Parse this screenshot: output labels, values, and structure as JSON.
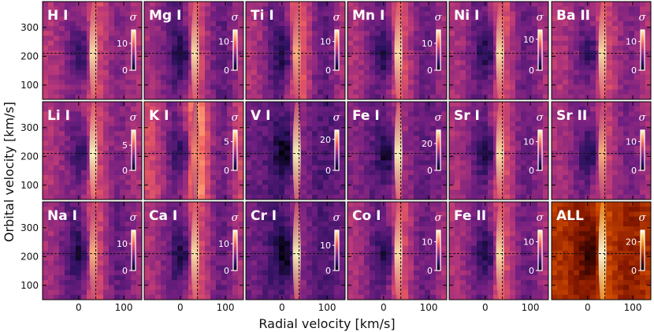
{
  "chart_data": {
    "type": "heatmap",
    "xlabel": "Radial velocity [km/s]",
    "ylabel": "Orbital velocity [km/s]",
    "xlim": [
      -80,
      140
    ],
    "ylim": [
      50,
      390
    ],
    "xticks": [
      0,
      100
    ],
    "yticks": [
      100,
      200,
      300
    ],
    "marker_x": 38,
    "marker_y": 210,
    "colorbar_label": "σ",
    "colormap": [
      "#000004",
      "#2c115f",
      "#721f81",
      "#b73779",
      "#f1605d",
      "#feb078",
      "#fcfdbf"
    ],
    "colormap_all": [
      "#000000",
      "#3a0500",
      "#8a1a00",
      "#d04a00",
      "#f28a10",
      "#fcd050",
      "#ffffe0"
    ],
    "panels": [
      {
        "name": "H I",
        "cbar_ticks": [
          0,
          10
        ],
        "cbar_max": 15,
        "signal": 0.8,
        "bg": 0.45,
        "fringe": 0.15
      },
      {
        "name": "Mg I",
        "cbar_ticks": [
          0,
          10
        ],
        "cbar_max": 14,
        "signal": 0.8,
        "bg": 0.4,
        "fringe": 0.2
      },
      {
        "name": "Ti I",
        "cbar_ticks": [
          0,
          10
        ],
        "cbar_max": 14,
        "signal": 0.7,
        "bg": 0.42,
        "fringe": 0.25
      },
      {
        "name": "Mn I",
        "cbar_ticks": [
          0,
          10
        ],
        "cbar_max": 15,
        "signal": 0.8,
        "bg": 0.42,
        "fringe": 0.2
      },
      {
        "name": "Ni I",
        "cbar_ticks": [
          0,
          10
        ],
        "cbar_max": 13,
        "signal": 0.8,
        "bg": 0.42,
        "fringe": 0.2
      },
      {
        "name": "Ba II",
        "cbar_ticks": [
          0,
          10
        ],
        "cbar_max": 14,
        "signal": 0.8,
        "bg": 0.45,
        "fringe": 0.15
      },
      {
        "name": "Li I",
        "cbar_ticks": [
          0,
          5
        ],
        "cbar_max": 8,
        "signal": 0.85,
        "bg": 0.45,
        "fringe": 0.15
      },
      {
        "name": "K I",
        "cbar_ticks": [
          0,
          5
        ],
        "cbar_max": 7,
        "signal": 0.6,
        "bg": 0.5,
        "fringe": 0.3
      },
      {
        "name": "V I",
        "cbar_ticks": [
          0,
          20
        ],
        "cbar_max": 26,
        "signal": 0.9,
        "bg": 0.3,
        "fringe": 0.1
      },
      {
        "name": "Fe I",
        "cbar_ticks": [
          0,
          20
        ],
        "cbar_max": 30,
        "signal": 0.9,
        "bg": 0.35,
        "fringe": 0.1
      },
      {
        "name": "Sr I",
        "cbar_ticks": [
          0,
          10
        ],
        "cbar_max": 14,
        "signal": 0.8,
        "bg": 0.42,
        "fringe": 0.2
      },
      {
        "name": "Sr II",
        "cbar_ticks": [
          0,
          10
        ],
        "cbar_max": 14,
        "signal": 0.7,
        "bg": 0.42,
        "fringe": 0.15
      },
      {
        "name": "Na I",
        "cbar_ticks": [
          0,
          10
        ],
        "cbar_max": 15,
        "signal": 0.7,
        "bg": 0.4,
        "fringe": 0.2
      },
      {
        "name": "Ca I",
        "cbar_ticks": [
          0,
          10
        ],
        "cbar_max": 15,
        "signal": 0.8,
        "bg": 0.42,
        "fringe": 0.2
      },
      {
        "name": "Cr I",
        "cbar_ticks": [
          0,
          10
        ],
        "cbar_max": 16,
        "signal": 0.85,
        "bg": 0.3,
        "fringe": 0.1
      },
      {
        "name": "Co I",
        "cbar_ticks": [
          0,
          10
        ],
        "cbar_max": 14,
        "signal": 0.8,
        "bg": 0.42,
        "fringe": 0.2
      },
      {
        "name": "Fe II",
        "cbar_ticks": [
          0,
          10
        ],
        "cbar_max": 14,
        "signal": 0.8,
        "bg": 0.42,
        "fringe": 0.2
      },
      {
        "name": "ALL",
        "cbar_ticks": [
          0,
          20
        ],
        "cbar_max": 28,
        "signal": 0.95,
        "bg": 0.4,
        "fringe": 0.1,
        "colormap": "all"
      }
    ]
  }
}
